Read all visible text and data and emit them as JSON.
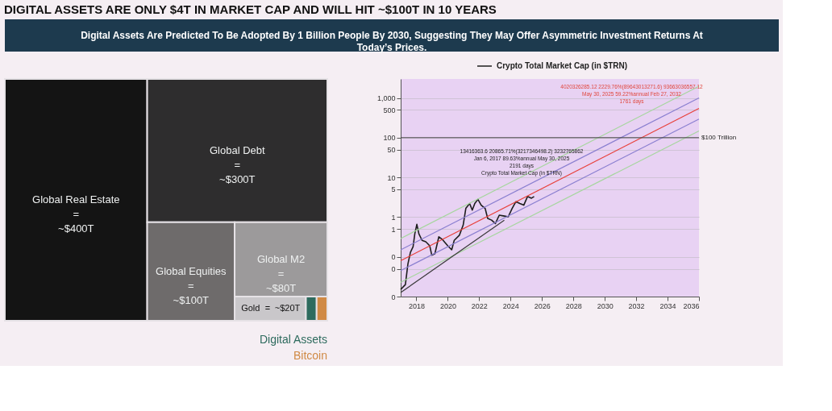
{
  "chart_data": [
    {
      "type": "other",
      "title": "DIGITAL ASSETS ARE ONLY $4T IN MARKET CAP AND WILL HIT ~$100T IN 10 YEARS",
      "subtitle": "Digital Assets Are Predicted To Be Adopted By 1 Billion People By 2030, Suggesting They May Offer Asymmetric Investment Returns At Today’s Prices.",
      "categories": [
        "Global Real Estate",
        "Global Debt",
        "Global Equities",
        "Global M2",
        "Gold",
        "Digital Assets",
        "Bitcoin"
      ],
      "values": [
        400,
        300,
        100,
        80,
        20,
        null,
        null
      ],
      "value_labels": [
        "=\n~$400T",
        "=\n~$300T",
        "=\n~$100T",
        "=\n~$80T",
        "=\n~$20T",
        null,
        null
      ],
      "colors": [
        "#141414",
        "#2e2d2e",
        "#6e6b6b",
        "#9c9a9b",
        "#c9c7ca",
        "#2e6b5e",
        "#d08a45"
      ]
    },
    {
      "type": "line",
      "series": [
        {
          "name": "Crypto Total Market Cap (in $TRN)",
          "color": "#1e1e1e",
          "x": [
            2017.0,
            2017.3,
            2017.46,
            2017.62,
            2017.79,
            2017.9,
            2018.03,
            2018.16,
            2018.36,
            2018.6,
            2018.85,
            2018.98,
            2019.18,
            2019.43,
            2019.67,
            2020.0,
            2020.25,
            2020.41,
            2020.74,
            2020.98,
            2021.15,
            2021.39,
            2021.56,
            2021.72,
            2021.92,
            2022.13,
            2022.38,
            2022.54,
            2022.79,
            2023.03,
            2023.28,
            2023.61,
            2023.85,
            2024.1,
            2024.34,
            2024.59,
            2024.84,
            2025.08,
            2025.33,
            2025.5
          ],
          "values": [
            0.015,
            0.02,
            0.066,
            0.13,
            0.18,
            0.38,
            0.66,
            0.38,
            0.26,
            0.24,
            0.19,
            0.11,
            0.12,
            0.32,
            0.27,
            0.19,
            0.15,
            0.26,
            0.35,
            0.63,
            1.66,
            2.2,
            1.5,
            2.2,
            2.8,
            2.0,
            1.66,
            0.93,
            0.84,
            0.69,
            1.12,
            1.06,
            1.02,
            1.66,
            2.45,
            2.2,
            2.0,
            3.3,
            3.0,
            3.3
          ]
        },
        {
          "color": "#e8403a",
          "x": [
            2017,
            2036
          ],
          "values": [
            0.08,
            545
          ]
        },
        {
          "color": "#8a7fd0",
          "x": [
            2017,
            2036
          ],
          "values": [
            0.15,
            1000
          ]
        },
        {
          "color": "#8a7fd0",
          "x": [
            2017,
            2036
          ],
          "values": [
            0.045,
            293
          ]
        },
        {
          "color": "#a6d69e",
          "x": [
            2017,
            2036
          ],
          "values": [
            0.29,
            1975
          ]
        },
        {
          "color": "#a6d69e",
          "x": [
            2017,
            2036
          ],
          "values": [
            0.023,
            147
          ]
        },
        {
          "color": "#3a3a3a",
          "x": [
            2017,
            2023.6
          ],
          "values": [
            0.0126,
            0.84
          ]
        }
      ],
      "xlim": [
        2017,
        2036
      ],
      "xticks": [
        2018,
        2020,
        2022,
        2024,
        2026,
        2028,
        2030,
        2032,
        2034,
        2036
      ],
      "ylim": [
        0.01,
        3000
      ],
      "yticks": [
        {
          "value": 0.01,
          "label": "0"
        },
        {
          "value": 0.05,
          "label": "0"
        },
        {
          "value": 0.1,
          "label": "0"
        },
        {
          "value": 0.5,
          "label": "1"
        },
        1,
        5,
        10,
        50,
        100,
        500,
        {
          "value": 1000,
          "label": "1,000"
        }
      ],
      "log": true,
      "grid": "y",
      "legend": "top",
      "ref_lines": [
        {
          "axis": "y",
          "value": 100,
          "label": "$100 Trillion"
        }
      ],
      "annotations": [
        "13416363.6   20865.71%(3217346498.2)   3232765862\nJan 6, 2017   89.63%annual   May 30, 2025\n2191 days\nCrypto Total Market Cap (in $TRN)",
        "4020326285.12   2229.76%(89643013271.6)   93663036557.12\nMay 30, 2025   59.22%annual   Feb 27, 2032\n1761 days"
      ]
    }
  ]
}
